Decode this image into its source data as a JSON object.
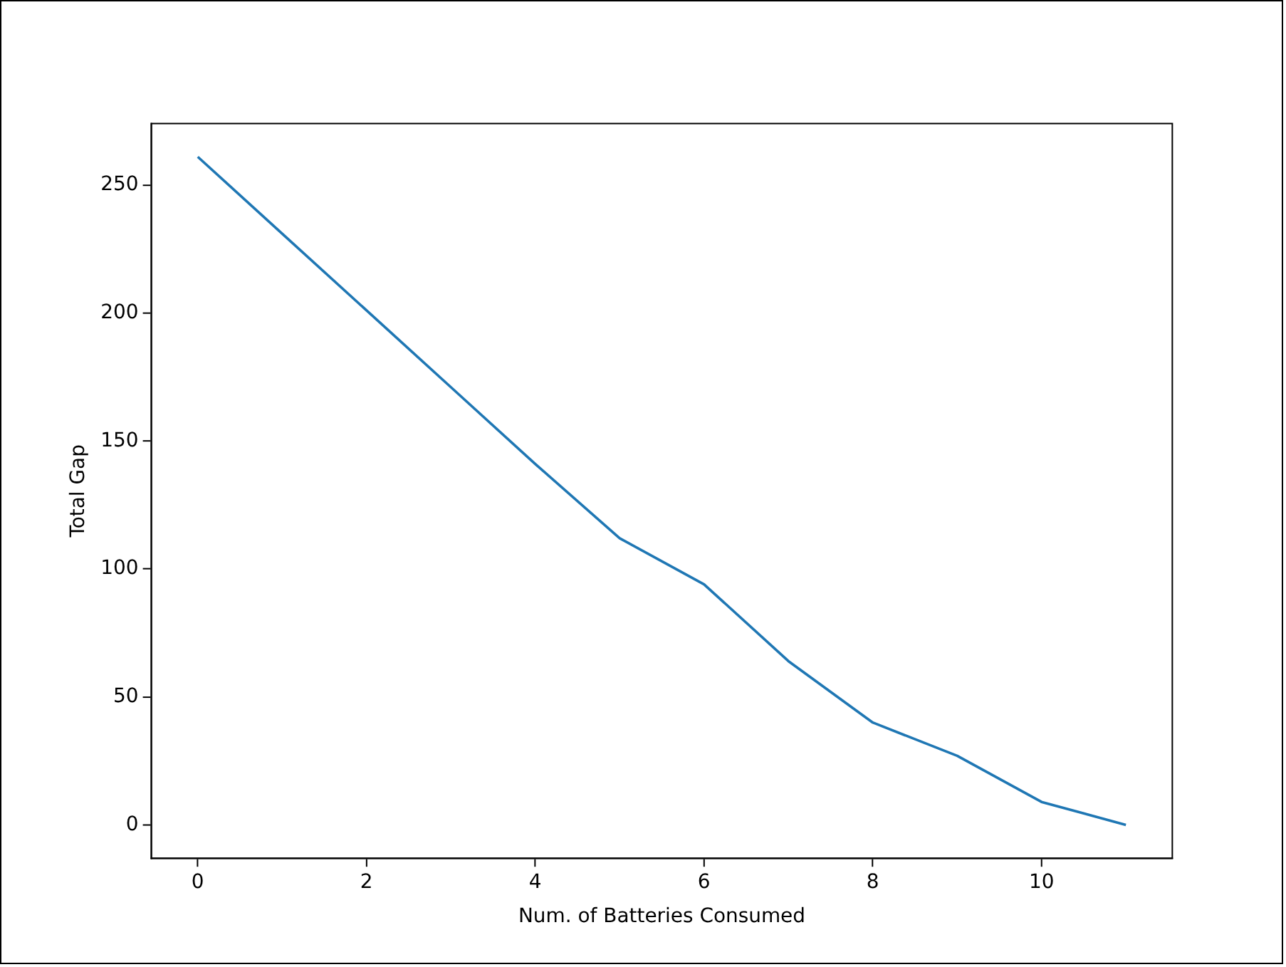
{
  "chart_data": {
    "type": "line",
    "xlabel": "Num. of Batteries Consumed",
    "ylabel": "Total Gap",
    "x": [
      0,
      1,
      2,
      3,
      4,
      5,
      6,
      7,
      8,
      9,
      10,
      11
    ],
    "series": [
      {
        "color": "#1f77b4",
        "values": [
          261,
          231,
          201,
          171,
          141,
          112,
          94,
          64,
          40,
          27,
          9,
          0
        ]
      }
    ],
    "xlim": [
      -0.55,
      11.55
    ],
    "ylim": [
      -13,
      274
    ],
    "xticks": [
      0,
      2,
      4,
      6,
      8,
      10
    ],
    "yticks": [
      0,
      50,
      100,
      150,
      200,
      250
    ],
    "grid": false,
    "legend": false,
    "marker": "none",
    "line_style": "solid"
  }
}
